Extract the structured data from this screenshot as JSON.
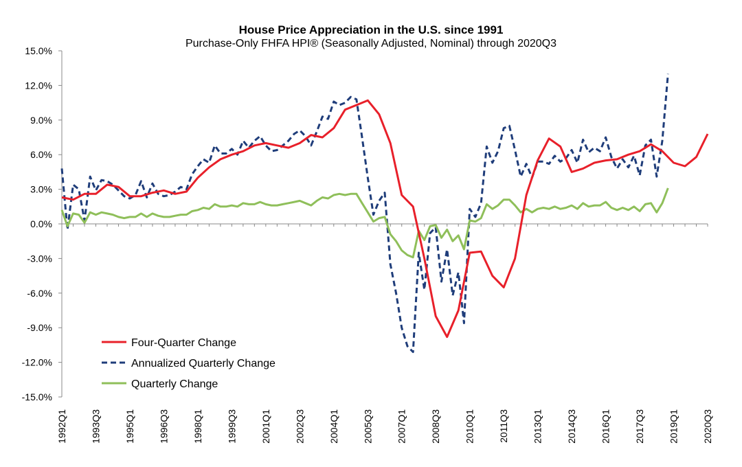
{
  "chart_data": {
    "type": "line",
    "title": "House Price Appreciation in the U.S. since 1991",
    "subtitle": "Purchase-Only FHFA HPI® (Seasonally Adjusted, Nominal) through 2020Q3",
    "y_ticks": [
      "15.0%",
      "12.0%",
      "9.0%",
      "6.0%",
      "3.0%",
      "0.0%",
      "-3.0%",
      "-6.0%",
      "-9.0%",
      "-12.0%",
      "-15.0%"
    ],
    "ylim": [
      -15,
      15
    ],
    "x_tick_labels": [
      "1992Q1",
      "1993Q3",
      "1995Q1",
      "1996Q3",
      "1998Q1",
      "1999Q3",
      "2001Q1",
      "2002Q3",
      "2004Q1",
      "2005Q3",
      "2007Q1",
      "2008Q3",
      "2010Q1",
      "2011Q3",
      "2013Q1",
      "2014Q3",
      "2016Q1",
      "2017Q3",
      "2019Q1",
      "2020Q3"
    ],
    "x_start": "1992Q1",
    "x_end": "2020Q3",
    "legend_position": "bottom-left",
    "grid": false,
    "series": [
      {
        "name": "Four-Quarter Change",
        "color": "#e8202a",
        "style": "solid",
        "points": [
          [
            "1992Q1",
            2.3
          ],
          [
            "1992Q3",
            2.1
          ],
          [
            "1993Q1",
            2.6
          ],
          [
            "1993Q3",
            2.6
          ],
          [
            "1994Q1",
            3.4
          ],
          [
            "1994Q3",
            3.2
          ],
          [
            "1995Q1",
            2.4
          ],
          [
            "1995Q3",
            2.4
          ],
          [
            "1996Q1",
            2.7
          ],
          [
            "1996Q3",
            2.9
          ],
          [
            "1997Q1",
            2.6
          ],
          [
            "1997Q3",
            2.8
          ],
          [
            "1998Q1",
            4.0
          ],
          [
            "1998Q3",
            4.9
          ],
          [
            "1999Q1",
            5.6
          ],
          [
            "1999Q3",
            6.0
          ],
          [
            "2000Q1",
            6.3
          ],
          [
            "2000Q3",
            6.8
          ],
          [
            "2001Q1",
            7.0
          ],
          [
            "2001Q3",
            6.8
          ],
          [
            "2002Q1",
            6.6
          ],
          [
            "2002Q3",
            7.0
          ],
          [
            "2003Q1",
            7.7
          ],
          [
            "2003Q3",
            7.5
          ],
          [
            "2004Q1",
            8.3
          ],
          [
            "2004Q3",
            9.9
          ],
          [
            "2005Q1",
            10.3
          ],
          [
            "2005Q3",
            10.7
          ],
          [
            "2006Q1",
            9.5
          ],
          [
            "2006Q3",
            7.0
          ],
          [
            "2007Q1",
            2.5
          ],
          [
            "2007Q3",
            1.5
          ],
          [
            "2008Q1",
            -3.0
          ],
          [
            "2008Q3",
            -8.0
          ],
          [
            "2009Q1",
            -9.8
          ],
          [
            "2009Q3",
            -7.5
          ],
          [
            "2010Q1",
            -2.5
          ],
          [
            "2010Q3",
            -2.4
          ],
          [
            "2011Q1",
            -4.5
          ],
          [
            "2011Q3",
            -5.5
          ],
          [
            "2012Q1",
            -3.0
          ],
          [
            "2012Q3",
            2.5
          ],
          [
            "2013Q1",
            5.5
          ],
          [
            "2013Q3",
            7.4
          ],
          [
            "2014Q1",
            6.7
          ],
          [
            "2014Q3",
            4.5
          ],
          [
            "2015Q1",
            4.8
          ],
          [
            "2015Q3",
            5.3
          ],
          [
            "2016Q1",
            5.5
          ],
          [
            "2016Q3",
            5.6
          ],
          [
            "2017Q1",
            6.0
          ],
          [
            "2017Q3",
            6.3
          ],
          [
            "2018Q1",
            6.9
          ],
          [
            "2018Q3",
            6.3
          ],
          [
            "2019Q1",
            5.3
          ],
          [
            "2019Q3",
            5.0
          ],
          [
            "2020Q1",
            5.8
          ],
          [
            "2020Q3",
            7.8
          ]
        ]
      },
      {
        "name": "Annualized Quarterly Change",
        "color": "#1f3d7a",
        "style": "dashed",
        "points": [
          [
            "1992Q1",
            4.8
          ],
          [
            "1992Q2",
            -0.5
          ],
          [
            "1992Q3",
            3.4
          ],
          [
            "1992Q4",
            3.0
          ],
          [
            "1993Q1",
            0.3
          ],
          [
            "1993Q2",
            4.1
          ],
          [
            "1993Q3",
            2.9
          ],
          [
            "1993Q4",
            3.8
          ],
          [
            "1994Q1",
            3.7
          ],
          [
            "1994Q2",
            3.4
          ],
          [
            "1994Q3",
            2.9
          ],
          [
            "1994Q4",
            2.4
          ],
          [
            "1995Q1",
            2.2
          ],
          [
            "1995Q2",
            2.5
          ],
          [
            "1995Q3",
            3.7
          ],
          [
            "1995Q4",
            2.3
          ],
          [
            "1996Q1",
            3.5
          ],
          [
            "1996Q2",
            2.6
          ],
          [
            "1996Q3",
            2.4
          ],
          [
            "1996Q4",
            2.5
          ],
          [
            "1997Q1",
            2.8
          ],
          [
            "1997Q2",
            3.2
          ],
          [
            "1997Q3",
            3.0
          ],
          [
            "1997Q4",
            4.3
          ],
          [
            "1998Q1",
            5.0
          ],
          [
            "1998Q2",
            5.6
          ],
          [
            "1998Q3",
            5.3
          ],
          [
            "1998Q4",
            6.8
          ],
          [
            "1999Q1",
            6.1
          ],
          [
            "1999Q2",
            6.1
          ],
          [
            "1999Q3",
            6.5
          ],
          [
            "1999Q4",
            6.0
          ],
          [
            "2000Q1",
            7.2
          ],
          [
            "2000Q2",
            6.6
          ],
          [
            "2000Q3",
            7.2
          ],
          [
            "2000Q4",
            7.6
          ],
          [
            "2001Q1",
            6.8
          ],
          [
            "2001Q2",
            6.3
          ],
          [
            "2001Q3",
            6.4
          ],
          [
            "2001Q4",
            6.8
          ],
          [
            "2002Q1",
            7.2
          ],
          [
            "2002Q2",
            7.8
          ],
          [
            "2002Q3",
            8.1
          ],
          [
            "2002Q4",
            7.6
          ],
          [
            "2003Q1",
            6.8
          ],
          [
            "2003Q2",
            8.0
          ],
          [
            "2003Q3",
            9.3
          ],
          [
            "2003Q4",
            9.1
          ],
          [
            "2004Q1",
            10.6
          ],
          [
            "2004Q2",
            10.3
          ],
          [
            "2004Q3",
            10.5
          ],
          [
            "2004Q4",
            11.0
          ],
          [
            "2005Q1",
            10.8
          ],
          [
            "2005Q2",
            7.5
          ],
          [
            "2005Q3",
            4.0
          ],
          [
            "2005Q4",
            0.8
          ],
          [
            "2006Q1",
            2.0
          ],
          [
            "2006Q2",
            2.7
          ],
          [
            "2006Q3",
            -3.5
          ],
          [
            "2006Q4",
            -6.0
          ],
          [
            "2007Q1",
            -9.0
          ],
          [
            "2007Q2",
            -10.6
          ],
          [
            "2007Q3",
            -11.1
          ],
          [
            "2007Q4",
            -2.5
          ],
          [
            "2008Q1",
            -5.7
          ],
          [
            "2008Q2",
            -0.8
          ],
          [
            "2008Q3",
            -0.3
          ],
          [
            "2008Q4",
            -5.0
          ],
          [
            "2009Q1",
            -2.2
          ],
          [
            "2009Q2",
            -6.2
          ],
          [
            "2009Q3",
            -4.2
          ],
          [
            "2009Q4",
            -8.6
          ],
          [
            "2010Q1",
            1.3
          ],
          [
            "2010Q2",
            0.6
          ],
          [
            "2010Q3",
            1.8
          ],
          [
            "2010Q4",
            6.7
          ],
          [
            "2011Q1",
            5.3
          ],
          [
            "2011Q2",
            6.3
          ],
          [
            "2011Q3",
            8.3
          ],
          [
            "2011Q4",
            8.5
          ],
          [
            "2012Q1",
            6.4
          ],
          [
            "2012Q2",
            4.1
          ],
          [
            "2012Q3",
            5.2
          ],
          [
            "2012Q4",
            4.0
          ],
          [
            "2013Q1",
            5.4
          ],
          [
            "2013Q2",
            5.4
          ],
          [
            "2013Q3",
            5.2
          ],
          [
            "2013Q4",
            5.9
          ],
          [
            "2014Q1",
            5.4
          ],
          [
            "2014Q2",
            5.7
          ],
          [
            "2014Q3",
            6.4
          ],
          [
            "2014Q4",
            5.3
          ],
          [
            "2015Q1",
            7.3
          ],
          [
            "2015Q2",
            6.2
          ],
          [
            "2015Q3",
            6.6
          ],
          [
            "2015Q4",
            6.3
          ],
          [
            "2016Q1",
            7.5
          ],
          [
            "2016Q2",
            5.8
          ],
          [
            "2016Q3",
            4.8
          ],
          [
            "2016Q4",
            5.6
          ],
          [
            "2017Q1",
            4.9
          ],
          [
            "2017Q2",
            5.9
          ],
          [
            "2017Q3",
            4.2
          ],
          [
            "2017Q4",
            6.8
          ],
          [
            "2018Q1",
            7.3
          ],
          [
            "2018Q2",
            4.1
          ],
          [
            "2018Q3",
            7.2
          ],
          [
            "2018Q4",
            13.0
          ]
        ]
      },
      {
        "name": "Quarterly Change",
        "color": "#8fbf5a",
        "style": "solid",
        "points": [
          [
            "1992Q1",
            1.2
          ],
          [
            "1992Q2",
            -0.2
          ],
          [
            "1992Q3",
            0.9
          ],
          [
            "1992Q4",
            0.8
          ],
          [
            "1993Q1",
            0.1
          ],
          [
            "1993Q2",
            1.0
          ],
          [
            "1993Q3",
            0.8
          ],
          [
            "1993Q4",
            1.0
          ],
          [
            "1994Q1",
            0.9
          ],
          [
            "1994Q2",
            0.8
          ],
          [
            "1994Q3",
            0.6
          ],
          [
            "1994Q4",
            0.5
          ],
          [
            "1995Q1",
            0.6
          ],
          [
            "1995Q2",
            0.6
          ],
          [
            "1995Q3",
            0.9
          ],
          [
            "1995Q4",
            0.6
          ],
          [
            "1996Q1",
            0.9
          ],
          [
            "1996Q2",
            0.7
          ],
          [
            "1996Q3",
            0.6
          ],
          [
            "1996Q4",
            0.6
          ],
          [
            "1997Q1",
            0.7
          ],
          [
            "1997Q2",
            0.8
          ],
          [
            "1997Q3",
            0.8
          ],
          [
            "1997Q4",
            1.1
          ],
          [
            "1998Q1",
            1.2
          ],
          [
            "1998Q2",
            1.4
          ],
          [
            "1998Q3",
            1.3
          ],
          [
            "1998Q4",
            1.7
          ],
          [
            "1999Q1",
            1.5
          ],
          [
            "1999Q2",
            1.5
          ],
          [
            "1999Q3",
            1.6
          ],
          [
            "1999Q4",
            1.5
          ],
          [
            "2000Q1",
            1.8
          ],
          [
            "2000Q2",
            1.7
          ],
          [
            "2000Q3",
            1.7
          ],
          [
            "2000Q4",
            1.9
          ],
          [
            "2001Q1",
            1.7
          ],
          [
            "2001Q2",
            1.6
          ],
          [
            "2001Q3",
            1.6
          ],
          [
            "2001Q4",
            1.7
          ],
          [
            "2002Q1",
            1.8
          ],
          [
            "2002Q2",
            1.9
          ],
          [
            "2002Q3",
            2.0
          ],
          [
            "2002Q4",
            1.8
          ],
          [
            "2003Q1",
            1.6
          ],
          [
            "2003Q2",
            2.0
          ],
          [
            "2003Q3",
            2.3
          ],
          [
            "2003Q4",
            2.2
          ],
          [
            "2004Q1",
            2.5
          ],
          [
            "2004Q2",
            2.6
          ],
          [
            "2004Q3",
            2.5
          ],
          [
            "2004Q4",
            2.6
          ],
          [
            "2005Q1",
            2.6
          ],
          [
            "2005Q2",
            1.8
          ],
          [
            "2005Q3",
            1.0
          ],
          [
            "2005Q4",
            0.2
          ],
          [
            "2006Q1",
            0.5
          ],
          [
            "2006Q2",
            0.6
          ],
          [
            "2006Q3",
            -0.9
          ],
          [
            "2006Q4",
            -1.5
          ],
          [
            "2007Q1",
            -2.3
          ],
          [
            "2007Q2",
            -2.7
          ],
          [
            "2007Q3",
            -2.9
          ],
          [
            "2007Q4",
            -0.6
          ],
          [
            "2008Q1",
            -1.4
          ],
          [
            "2008Q2",
            -0.2
          ],
          [
            "2008Q3",
            -0.1
          ],
          [
            "2008Q4",
            -1.2
          ],
          [
            "2009Q1",
            -0.5
          ],
          [
            "2009Q2",
            -1.5
          ],
          [
            "2009Q3",
            -1.0
          ],
          [
            "2009Q4",
            -2.2
          ],
          [
            "2010Q1",
            0.3
          ],
          [
            "2010Q2",
            0.2
          ],
          [
            "2010Q3",
            0.5
          ],
          [
            "2010Q4",
            1.7
          ],
          [
            "2011Q1",
            1.3
          ],
          [
            "2011Q2",
            1.6
          ],
          [
            "2011Q3",
            2.1
          ],
          [
            "2011Q4",
            2.1
          ],
          [
            "2012Q1",
            1.6
          ],
          [
            "2012Q2",
            1.0
          ],
          [
            "2012Q3",
            1.3
          ],
          [
            "2012Q4",
            1.0
          ],
          [
            "2013Q1",
            1.3
          ],
          [
            "2013Q2",
            1.4
          ],
          [
            "2013Q3",
            1.3
          ],
          [
            "2013Q4",
            1.5
          ],
          [
            "2014Q1",
            1.3
          ],
          [
            "2014Q2",
            1.4
          ],
          [
            "2014Q3",
            1.6
          ],
          [
            "2014Q4",
            1.3
          ],
          [
            "2015Q1",
            1.8
          ],
          [
            "2015Q2",
            1.5
          ],
          [
            "2015Q3",
            1.6
          ],
          [
            "2015Q4",
            1.6
          ],
          [
            "2016Q1",
            1.9
          ],
          [
            "2016Q2",
            1.4
          ],
          [
            "2016Q3",
            1.2
          ],
          [
            "2016Q4",
            1.4
          ],
          [
            "2017Q1",
            1.2
          ],
          [
            "2017Q2",
            1.5
          ],
          [
            "2017Q3",
            1.1
          ],
          [
            "2017Q4",
            1.7
          ],
          [
            "2018Q1",
            1.8
          ],
          [
            "2018Q2",
            1.0
          ],
          [
            "2018Q3",
            1.8
          ],
          [
            "2018Q4",
            3.1
          ]
        ]
      }
    ]
  }
}
